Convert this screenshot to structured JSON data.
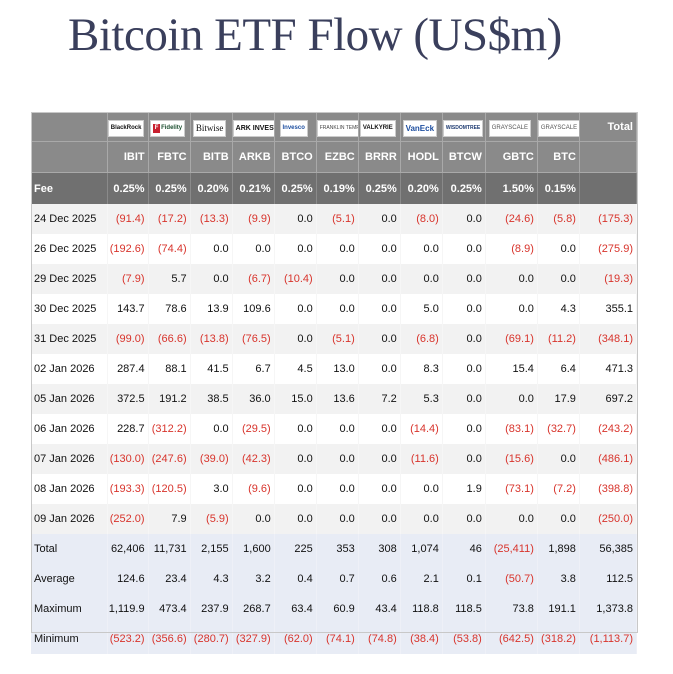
{
  "title": "Bitcoin ETF Flow (US$m)",
  "logos": [
    {
      "icon": "blackrock-logo",
      "text": "BlackRock"
    },
    {
      "icon": "fidelity-logo",
      "text": "Fidelity",
      "badge": "F"
    },
    {
      "icon": "bitwise-logo",
      "text": "Bitwise"
    },
    {
      "icon": "ark-invest-logo",
      "text": "ARK INVEST"
    },
    {
      "icon": "invesco-logo",
      "text": "Invesco"
    },
    {
      "icon": "franklin-templeton-logo",
      "text": "FRANKLIN TEMPLETON"
    },
    {
      "icon": "valkyrie-logo",
      "text": "VALKYRIE"
    },
    {
      "icon": "vaneck-logo",
      "text": "VanEck"
    },
    {
      "icon": "wisdomtree-logo",
      "text": "WISDOMTREE"
    },
    {
      "icon": "grayscale-logo",
      "text": "GRAYSCALE"
    },
    {
      "icon": "grayscale-logo",
      "text": "GRAYSCALE"
    }
  ],
  "total_header": "Total",
  "tickers": [
    "IBIT",
    "FBTC",
    "BITB",
    "ARKB",
    "BTCO",
    "EZBC",
    "BRRR",
    "HODL",
    "BTCW",
    "GBTC",
    "BTC"
  ],
  "fee_label": "Fee",
  "fees": [
    "0.25%",
    "0.25%",
    "0.20%",
    "0.21%",
    "0.25%",
    "0.19%",
    "0.25%",
    "0.20%",
    "0.25%",
    "1.50%",
    "0.15%"
  ],
  "rows": [
    {
      "date": "24 Dec 2025",
      "values": [
        "(91.4)",
        "(17.2)",
        "(13.3)",
        "(9.9)",
        "0.0",
        "(5.1)",
        "0.0",
        "(8.0)",
        "0.0",
        "(24.6)",
        "(5.8)",
        "(175.3)"
      ]
    },
    {
      "date": "26 Dec 2025",
      "values": [
        "(192.6)",
        "(74.4)",
        "0.0",
        "0.0",
        "0.0",
        "0.0",
        "0.0",
        "0.0",
        "0.0",
        "(8.9)",
        "0.0",
        "(275.9)"
      ]
    },
    {
      "date": "29 Dec 2025",
      "values": [
        "(7.9)",
        "5.7",
        "0.0",
        "(6.7)",
        "(10.4)",
        "0.0",
        "0.0",
        "0.0",
        "0.0",
        "0.0",
        "0.0",
        "(19.3)"
      ]
    },
    {
      "date": "30 Dec 2025",
      "values": [
        "143.7",
        "78.6",
        "13.9",
        "109.6",
        "0.0",
        "0.0",
        "0.0",
        "5.0",
        "0.0",
        "0.0",
        "4.3",
        "355.1"
      ]
    },
    {
      "date": "31 Dec 2025",
      "values": [
        "(99.0)",
        "(66.6)",
        "(13.8)",
        "(76.5)",
        "0.0",
        "(5.1)",
        "0.0",
        "(6.8)",
        "0.0",
        "(69.1)",
        "(11.2)",
        "(348.1)"
      ]
    },
    {
      "date": "02 Jan 2026",
      "values": [
        "287.4",
        "88.1",
        "41.5",
        "6.7",
        "4.5",
        "13.0",
        "0.0",
        "8.3",
        "0.0",
        "15.4",
        "6.4",
        "471.3"
      ]
    },
    {
      "date": "05 Jan 2026",
      "values": [
        "372.5",
        "191.2",
        "38.5",
        "36.0",
        "15.0",
        "13.6",
        "7.2",
        "5.3",
        "0.0",
        "0.0",
        "17.9",
        "697.2"
      ]
    },
    {
      "date": "06 Jan 2026",
      "values": [
        "228.7",
        "(312.2)",
        "0.0",
        "(29.5)",
        "0.0",
        "0.0",
        "0.0",
        "(14.4)",
        "0.0",
        "(83.1)",
        "(32.7)",
        "(243.2)"
      ]
    },
    {
      "date": "07 Jan 2026",
      "values": [
        "(130.0)",
        "(247.6)",
        "(39.0)",
        "(42.3)",
        "0.0",
        "0.0",
        "0.0",
        "(11.6)",
        "0.0",
        "(15.6)",
        "0.0",
        "(486.1)"
      ]
    },
    {
      "date": "08 Jan 2026",
      "values": [
        "(193.3)",
        "(120.5)",
        "3.0",
        "(9.6)",
        "0.0",
        "0.0",
        "0.0",
        "0.0",
        "1.9",
        "(73.1)",
        "(7.2)",
        "(398.8)"
      ]
    },
    {
      "date": "09 Jan 2026",
      "values": [
        "(252.0)",
        "7.9",
        "(5.9)",
        "0.0",
        "0.0",
        "0.0",
        "0.0",
        "0.0",
        "0.0",
        "0.0",
        "0.0",
        "(250.0)"
      ]
    }
  ],
  "summary": [
    {
      "label": "Total",
      "values": [
        "62,406",
        "11,731",
        "2,155",
        "1,600",
        "225",
        "353",
        "308",
        "1,074",
        "46",
        "(25,411)",
        "1,898",
        "56,385"
      ]
    },
    {
      "label": "Average",
      "values": [
        "124.6",
        "23.4",
        "4.3",
        "3.2",
        "0.4",
        "0.7",
        "0.6",
        "2.1",
        "0.1",
        "(50.7)",
        "3.8",
        "112.5"
      ]
    },
    {
      "label": "Maximum",
      "values": [
        "1,119.9",
        "473.4",
        "237.9",
        "268.7",
        "63.4",
        "60.9",
        "43.4",
        "118.8",
        "118.5",
        "73.8",
        "191.1",
        "1,373.8"
      ]
    },
    {
      "label": "Minimum",
      "values": [
        "(523.2)",
        "(356.6)",
        "(280.7)",
        "(327.9)",
        "(62.0)",
        "(74.1)",
        "(74.8)",
        "(38.4)",
        "(53.8)",
        "(642.5)",
        "(318.2)",
        "(1,113.7)"
      ]
    }
  ],
  "colors": {
    "header_bg": "#8a8a8a",
    "fee_bg": "#707070",
    "negative": "#d8342c",
    "summary_bg": "#e8ecf5",
    "title": "#3a3f5c"
  }
}
